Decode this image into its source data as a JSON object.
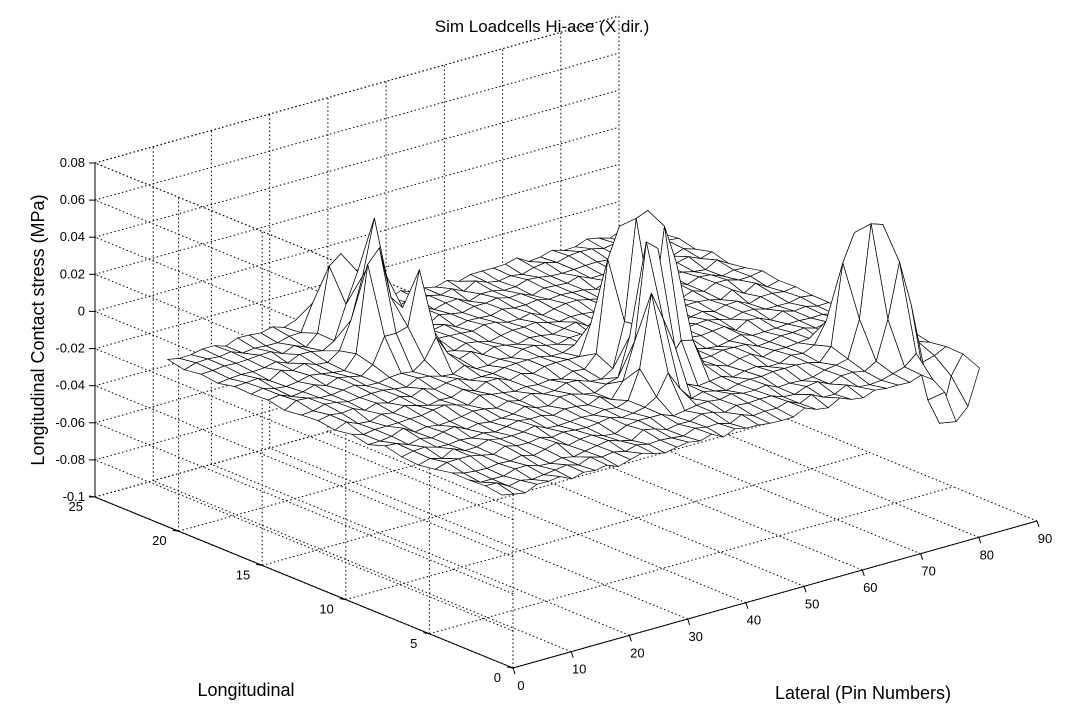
{
  "chart_data": {
    "type": "surface3d",
    "title": "Sim Loadcells Hi-ace (X dir.)",
    "xlabel": "Longitudinal",
    "ylabel": "Lateral (Pin Numbers)",
    "zlabel": "Longitudinal Contact stress (MPa)",
    "x_range": [
      0,
      25
    ],
    "y_range": [
      0,
      90
    ],
    "z_range": [
      -0.1,
      0.08
    ],
    "x_ticks": [
      "0",
      "5",
      "10",
      "15",
      "20",
      "25"
    ],
    "y_ticks": [
      "0",
      "10",
      "20",
      "30",
      "40",
      "50",
      "60",
      "70",
      "80",
      "90"
    ],
    "z_ticks": [
      "-0.1",
      "-0.08",
      "-0.06",
      "-0.04",
      "-0.02",
      "0",
      "0.02",
      "0.04",
      "0.06",
      "0.08"
    ],
    "grid": true,
    "surface": {
      "x_extent": [
        1,
        21
      ],
      "y_extent": [
        1,
        84
      ],
      "baseline": -0.012,
      "peaks": [
        {
          "x": 16,
          "y": 22,
          "z": 0.058
        },
        {
          "x": 17,
          "y": 25,
          "z": 0.052
        },
        {
          "x": 18,
          "y": 28,
          "z": 0.044
        },
        {
          "x": 15,
          "y": 27,
          "z": 0.036
        },
        {
          "x": 19,
          "y": 24,
          "z": 0.04
        },
        {
          "x": 7,
          "y": 44,
          "z": 0.085
        },
        {
          "x": 9,
          "y": 48,
          "z": 0.07
        },
        {
          "x": 8,
          "y": 50,
          "z": 0.062
        },
        {
          "x": 10,
          "y": 46,
          "z": 0.056
        },
        {
          "x": 6,
          "y": 41,
          "z": 0.042
        },
        {
          "x": 11,
          "y": 52,
          "z": 0.036
        },
        {
          "x": 4,
          "y": 74,
          "z": 0.06
        },
        {
          "x": 5,
          "y": 72,
          "z": 0.048
        },
        {
          "x": 3,
          "y": 76,
          "z": 0.038
        },
        {
          "x": 2,
          "y": 78,
          "z": -0.05
        },
        {
          "x": 1,
          "y": 80,
          "z": -0.038
        }
      ]
    }
  }
}
